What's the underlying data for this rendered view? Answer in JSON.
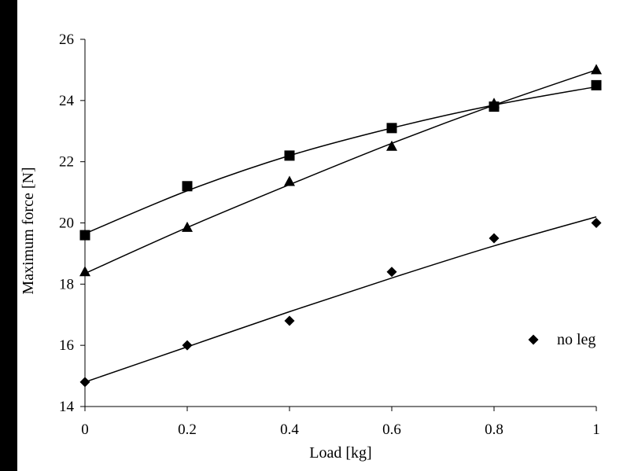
{
  "chart_data": {
    "type": "scatter",
    "title": "",
    "xlabel": "Load [kg]",
    "ylabel": "Maximum force [N]",
    "xlim": [
      0,
      1
    ],
    "ylim": [
      14,
      26
    ],
    "x_ticks": [
      0,
      0.2,
      0.4,
      0.6,
      0.8,
      1
    ],
    "x_tick_labels": [
      "0",
      "0.2",
      "0.4",
      "0.6",
      "0.8",
      "1"
    ],
    "y_ticks": [
      14,
      16,
      18,
      20,
      22,
      24,
      26
    ],
    "y_tick_labels": [
      "14",
      "16",
      "18",
      "20",
      "22",
      "24",
      "26"
    ],
    "grid": false,
    "legend_position": "right",
    "series": [
      {
        "marker": "square",
        "x": [
          0,
          0.2,
          0.4,
          0.6,
          0.8,
          1
        ],
        "y": [
          19.6,
          21.2,
          22.2,
          23.1,
          23.8,
          24.5
        ],
        "fit": [
          19.65,
          21.05,
          22.2,
          23.1,
          23.85,
          24.45
        ]
      },
      {
        "marker": "triangle",
        "x": [
          0,
          0.2,
          0.4,
          0.6,
          0.8,
          1
        ],
        "y": [
          18.4,
          19.85,
          21.35,
          22.5,
          23.9,
          25.0
        ],
        "fit": [
          18.35,
          19.85,
          21.25,
          22.6,
          23.85,
          25.0
        ]
      },
      {
        "name": "no leg",
        "marker": "diamond",
        "x": [
          0,
          0.2,
          0.4,
          0.6,
          0.8,
          1
        ],
        "y": [
          14.8,
          16.0,
          16.8,
          18.4,
          19.5,
          20.0
        ],
        "fit": [
          14.8,
          15.95,
          17.1,
          18.2,
          19.25,
          20.2
        ]
      }
    ],
    "legend": [
      {
        "label": "no leg",
        "marker": "diamond"
      }
    ]
  }
}
